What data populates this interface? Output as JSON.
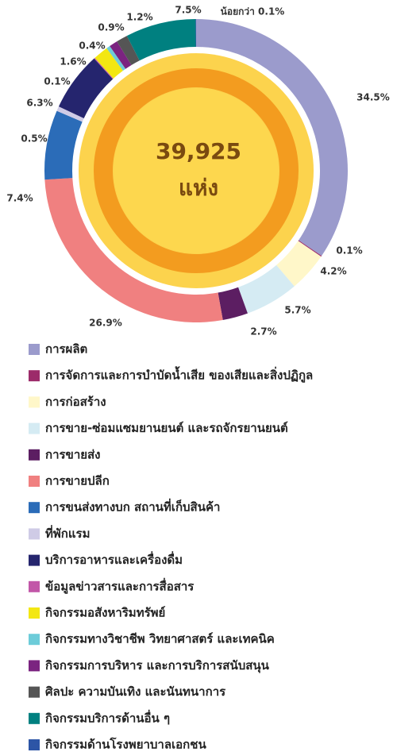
{
  "chart_data": {
    "type": "donut",
    "center_label": [
      "39,925",
      "แห่ง"
    ],
    "categories": [
      "การผลิต",
      "การจัดการและการบำบัดน้ำเสีย ของเสียและสิ่งปฏิกูล",
      "การก่อสร้าง",
      "การขาย-ซ่อมแซมยานยนต์ และรถจักรยานยนต์",
      "การขายส่ง",
      "การขายปลีก",
      "การขนส่งทางบก สถานที่เก็บสินค้า",
      "ที่พักแรม",
      "บริการอาหารและเครื่องดื่ม",
      "ข้อมูลข่าวสารและการสื่อสาร",
      "กิจกรรมอสังหาริมทรัพย์",
      "กิจกรรมทางวิชาชีพ วิทยาศาสตร์ และเทคนิค",
      "กิจกรรมการบริหาร และการบริการสนับสนุน",
      "ศิลปะ ความบันเทิง และนันทนาการ",
      "กิจกรรมบริการด้านอื่น ๆ",
      "กิจกรรมด้านโรงพยาบาลเอกชน"
    ],
    "values": [
      34.5,
      0.1,
      4.2,
      5.7,
      2.7,
      26.9,
      7.4,
      0.5,
      6.3,
      0.1,
      1.6,
      0.4,
      0.9,
      1.2,
      7.5,
      0.05
    ],
    "value_labels": [
      "34.5%",
      "0.1%",
      "4.2%",
      "5.7%",
      "2.7%",
      "26.9%",
      "7.4%",
      "0.5%",
      "6.3%",
      "0.1%",
      "1.6%",
      "0.4%",
      "0.9%",
      "1.2%",
      "7.5%",
      "น้อยกว่า 0.1%"
    ],
    "colors": [
      "#9b9bcc",
      "#9c2b6a",
      "#fff7c9",
      "#d5ebf3",
      "#5c1e62",
      "#f08080",
      "#2b6cb8",
      "#cfcbe6",
      "#25256e",
      "#c257a8",
      "#f3e712",
      "#6dccd9",
      "#7b2480",
      "#555555",
      "#008080",
      "#2d55a6"
    ],
    "legend": "bottom"
  }
}
